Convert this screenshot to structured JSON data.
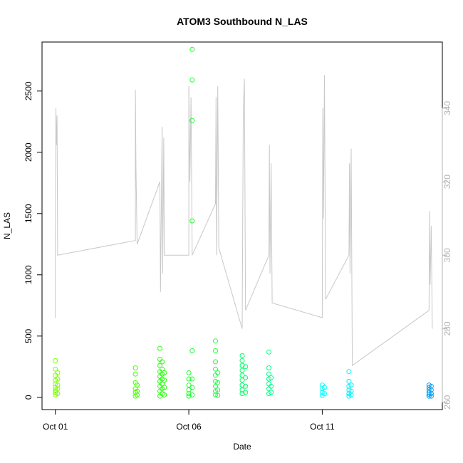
{
  "chart_data": {
    "type": "scatter",
    "title": "ATOM3 Southbound N_LAS",
    "xlabel": "Date",
    "ylabel": "N_LAS",
    "x_axis": {
      "kind": "date",
      "range": [
        "2023-09-30T12:00",
        "2023-10-15T12:00"
      ],
      "ticks": [
        {
          "value": "2023-10-01",
          "label": "Oct 01"
        },
        {
          "value": "2023-10-06",
          "label": "Oct 06"
        },
        {
          "value": "2023-10-11",
          "label": "Oct 11"
        }
      ]
    },
    "y_left": {
      "range": [
        -100,
        2900
      ],
      "ticks": [
        0,
        500,
        1000,
        1500,
        2000,
        2500
      ]
    },
    "y_right": {
      "range": [
        258,
        358
      ],
      "ticks": [
        260,
        280,
        300,
        320,
        340
      ],
      "color": "#b3b3b3"
    },
    "grid": false,
    "legend": "none",
    "point_series": {
      "marker": "open-circle",
      "color_by": "day",
      "points": [
        [
          "2023-10-01T00:00",
          300,
          "#7cff00"
        ],
        [
          "2023-10-01T00:00",
          230,
          "#7cff00"
        ],
        [
          "2023-10-01T00:00",
          180,
          "#7cff00"
        ],
        [
          "2023-10-01T00:00",
          140,
          "#7cff00"
        ],
        [
          "2023-10-01T00:00",
          110,
          "#7cff00"
        ],
        [
          "2023-10-01T00:00",
          80,
          "#7cff00"
        ],
        [
          "2023-10-01T00:00",
          60,
          "#7cff00"
        ],
        [
          "2023-10-01T00:00",
          40,
          "#7cff00"
        ],
        [
          "2023-10-01T00:00",
          20,
          "#7cff00"
        ],
        [
          "2023-10-01T02:00",
          200,
          "#7cff00"
        ],
        [
          "2023-10-01T02:00",
          150,
          "#7cff00"
        ],
        [
          "2023-10-01T02:00",
          100,
          "#7cff00"
        ],
        [
          "2023-10-01T02:00",
          70,
          "#7cff00"
        ],
        [
          "2023-10-01T02:00",
          30,
          "#7cff00"
        ],
        [
          "2023-10-04T00:00",
          240,
          "#47ff00"
        ],
        [
          "2023-10-04T00:00",
          190,
          "#47ff00"
        ],
        [
          "2023-10-04T00:00",
          120,
          "#47ff00"
        ],
        [
          "2023-10-04T00:00",
          70,
          "#47ff00"
        ],
        [
          "2023-10-04T00:00",
          40,
          "#47ff00"
        ],
        [
          "2023-10-04T00:00",
          10,
          "#47ff00"
        ],
        [
          "2023-10-04T01:30",
          100,
          "#47ff00"
        ],
        [
          "2023-10-04T01:30",
          50,
          "#47ff00"
        ],
        [
          "2023-10-04T01:30",
          20,
          "#47ff00"
        ],
        [
          "2023-10-04T22:00",
          400,
          "#2aff10"
        ],
        [
          "2023-10-04T22:00",
          310,
          "#2aff10"
        ],
        [
          "2023-10-04T22:00",
          260,
          "#2aff10"
        ],
        [
          "2023-10-04T22:00",
          210,
          "#2aff10"
        ],
        [
          "2023-10-04T22:00",
          170,
          "#2aff10"
        ],
        [
          "2023-10-04T22:00",
          130,
          "#2aff10"
        ],
        [
          "2023-10-04T22:00",
          90,
          "#2aff10"
        ],
        [
          "2023-10-04T22:00",
          50,
          "#2aff10"
        ],
        [
          "2023-10-04T22:00",
          10,
          "#2aff10"
        ],
        [
          "2023-10-05T00:00",
          290,
          "#2aff10"
        ],
        [
          "2023-10-05T00:00",
          230,
          "#2aff10"
        ],
        [
          "2023-10-05T00:00",
          190,
          "#2aff10"
        ],
        [
          "2023-10-05T00:00",
          150,
          "#2aff10"
        ],
        [
          "2023-10-05T00:00",
          110,
          "#2aff10"
        ],
        [
          "2023-10-05T00:00",
          70,
          "#2aff10"
        ],
        [
          "2023-10-05T00:00",
          30,
          "#2aff10"
        ],
        [
          "2023-10-05T02:00",
          200,
          "#2aff10"
        ],
        [
          "2023-10-05T02:00",
          140,
          "#2aff10"
        ],
        [
          "2023-10-05T02:00",
          80,
          "#2aff10"
        ],
        [
          "2023-10-05T02:00",
          20,
          "#2aff10"
        ],
        [
          "2023-10-06T00:00",
          200,
          "#1aff2e"
        ],
        [
          "2023-10-06T00:00",
          150,
          "#1aff2e"
        ],
        [
          "2023-10-06T00:00",
          100,
          "#1aff2e"
        ],
        [
          "2023-10-06T00:00",
          60,
          "#1aff2e"
        ],
        [
          "2023-10-06T00:00",
          30,
          "#1aff2e"
        ],
        [
          "2023-10-06T00:00",
          10,
          "#1aff2e"
        ],
        [
          "2023-10-06T03:00",
          2840,
          "#1aff2e"
        ],
        [
          "2023-10-06T03:00",
          2590,
          "#1aff2e"
        ],
        [
          "2023-10-06T03:00",
          2260,
          "#1aff2e"
        ],
        [
          "2023-10-06T03:00",
          1440,
          "#1aff2e"
        ],
        [
          "2023-10-06T03:00",
          380,
          "#1aff2e"
        ],
        [
          "2023-10-06T03:00",
          150,
          "#1aff2e"
        ],
        [
          "2023-10-06T03:00",
          80,
          "#1aff2e"
        ],
        [
          "2023-10-06T03:00",
          20,
          "#1aff2e"
        ],
        [
          "2023-10-07T00:00",
          460,
          "#1aff3c"
        ],
        [
          "2023-10-07T00:00",
          380,
          "#1aff3c"
        ],
        [
          "2023-10-07T00:00",
          290,
          "#1aff3c"
        ],
        [
          "2023-10-07T00:00",
          230,
          "#1aff3c"
        ],
        [
          "2023-10-07T00:00",
          180,
          "#1aff3c"
        ],
        [
          "2023-10-07T00:00",
          130,
          "#1aff3c"
        ],
        [
          "2023-10-07T00:00",
          90,
          "#1aff3c"
        ],
        [
          "2023-10-07T00:00",
          50,
          "#1aff3c"
        ],
        [
          "2023-10-07T00:00",
          20,
          "#1aff3c"
        ],
        [
          "2023-10-07T02:00",
          200,
          "#1aff3c"
        ],
        [
          "2023-10-07T02:00",
          120,
          "#1aff3c"
        ],
        [
          "2023-10-07T02:00",
          60,
          "#1aff3c"
        ],
        [
          "2023-10-07T02:00",
          15,
          "#1aff3c"
        ],
        [
          "2023-10-08T00:00",
          340,
          "#00ff66"
        ],
        [
          "2023-10-08T00:00",
          300,
          "#00ff66"
        ],
        [
          "2023-10-08T00:00",
          260,
          "#00ff66"
        ],
        [
          "2023-10-08T00:00",
          220,
          "#00ff66"
        ],
        [
          "2023-10-08T00:00",
          180,
          "#00ff66"
        ],
        [
          "2023-10-08T00:00",
          140,
          "#00ff66"
        ],
        [
          "2023-10-08T00:00",
          100,
          "#00ff66"
        ],
        [
          "2023-10-08T00:00",
          60,
          "#00ff66"
        ],
        [
          "2023-10-08T00:00",
          30,
          "#00ff66"
        ],
        [
          "2023-10-08T03:00",
          250,
          "#00ff66"
        ],
        [
          "2023-10-08T03:00",
          160,
          "#00ff66"
        ],
        [
          "2023-10-08T03:00",
          90,
          "#00ff66"
        ],
        [
          "2023-10-08T03:00",
          40,
          "#00ff66"
        ],
        [
          "2023-10-09T00:00",
          370,
          "#00ff88"
        ],
        [
          "2023-10-09T00:00",
          240,
          "#00ff88"
        ],
        [
          "2023-10-09T00:00",
          190,
          "#00ff88"
        ],
        [
          "2023-10-09T00:00",
          150,
          "#00ff88"
        ],
        [
          "2023-10-09T00:00",
          110,
          "#00ff88"
        ],
        [
          "2023-10-09T00:00",
          70,
          "#00ff88"
        ],
        [
          "2023-10-09T00:00",
          30,
          "#00ff88"
        ],
        [
          "2023-10-09T02:00",
          160,
          "#00ff88"
        ],
        [
          "2023-10-09T02:00",
          90,
          "#00ff88"
        ],
        [
          "2023-10-09T02:00",
          40,
          "#00ff88"
        ],
        [
          "2023-10-11T00:00",
          100,
          "#00ffff"
        ],
        [
          "2023-10-11T00:00",
          70,
          "#00ffff"
        ],
        [
          "2023-10-11T00:00",
          40,
          "#00ffff"
        ],
        [
          "2023-10-11T00:00",
          15,
          "#00ffff"
        ],
        [
          "2023-10-11T02:00",
          80,
          "#00ffff"
        ],
        [
          "2023-10-11T02:00",
          30,
          "#00ffff"
        ],
        [
          "2023-10-12T00:00",
          210,
          "#00f0ff"
        ],
        [
          "2023-10-12T00:00",
          130,
          "#00f0ff"
        ],
        [
          "2023-10-12T00:00",
          90,
          "#00f0ff"
        ],
        [
          "2023-10-12T00:00",
          60,
          "#00f0ff"
        ],
        [
          "2023-10-12T00:00",
          30,
          "#00f0ff"
        ],
        [
          "2023-10-12T00:00",
          10,
          "#00f0ff"
        ],
        [
          "2023-10-12T02:00",
          100,
          "#00f0ff"
        ],
        [
          "2023-10-12T02:00",
          50,
          "#00f0ff"
        ],
        [
          "2023-10-12T02:00",
          20,
          "#00f0ff"
        ],
        [
          "2023-10-15T00:00",
          100,
          "#0a9ef0"
        ],
        [
          "2023-10-15T00:00",
          80,
          "#0a9ef0"
        ],
        [
          "2023-10-15T00:00",
          60,
          "#0a9ef0"
        ],
        [
          "2023-10-15T00:00",
          40,
          "#0a9ef0"
        ],
        [
          "2023-10-15T00:00",
          25,
          "#0a9ef0"
        ],
        [
          "2023-10-15T00:00",
          10,
          "#0a9ef0"
        ],
        [
          "2023-10-15T02:00",
          90,
          "#0a9ef0"
        ],
        [
          "2023-10-15T02:00",
          60,
          "#0a9ef0"
        ],
        [
          "2023-10-15T02:00",
          30,
          "#0a9ef0"
        ],
        [
          "2023-10-15T02:00",
          10,
          "#0a9ef0"
        ]
      ]
    },
    "line_series": {
      "axis": "right",
      "color": "#c8c8c8",
      "points": [
        [
          "2023-10-01T00:00",
          283
        ],
        [
          "2023-10-01T00:00",
          302
        ],
        [
          "2023-10-01T00:30",
          340
        ],
        [
          "2023-10-01T01:00",
          330
        ],
        [
          "2023-10-01T01:30",
          338
        ],
        [
          "2023-10-01T02:00",
          300
        ],
        [
          "2023-10-04T00:00",
          304
        ],
        [
          "2023-10-04T00:00",
          345
        ],
        [
          "2023-10-04T00:30",
          324
        ],
        [
          "2023-10-04T01:30",
          303
        ],
        [
          "2023-10-04T22:00",
          320
        ],
        [
          "2023-10-04T22:30",
          290
        ],
        [
          "2023-10-05T00:00",
          335
        ],
        [
          "2023-10-05T00:30",
          295
        ],
        [
          "2023-10-05T01:30",
          332
        ],
        [
          "2023-10-05T02:00",
          300
        ],
        [
          "2023-10-06T00:00",
          300
        ],
        [
          "2023-10-06T00:00",
          346
        ],
        [
          "2023-10-06T01:00",
          320
        ],
        [
          "2023-10-06T02:00",
          343
        ],
        [
          "2023-10-06T03:00",
          300
        ],
        [
          "2023-10-07T00:00",
          314
        ],
        [
          "2023-10-07T00:30",
          343
        ],
        [
          "2023-10-07T01:00",
          300
        ],
        [
          "2023-10-07T02:00",
          346
        ],
        [
          "2023-10-07T03:00",
          302
        ],
        [
          "2023-10-08T00:00",
          280
        ],
        [
          "2023-10-08T00:30",
          312
        ],
        [
          "2023-10-08T01:00",
          340
        ],
        [
          "2023-10-08T02:00",
          348
        ],
        [
          "2023-10-08T03:00",
          285
        ],
        [
          "2023-10-09T00:00",
          300
        ],
        [
          "2023-10-09T00:30",
          330
        ],
        [
          "2023-10-09T01:00",
          295
        ],
        [
          "2023-10-09T02:00",
          325
        ],
        [
          "2023-10-09T03:00",
          287
        ],
        [
          "2023-10-11T00:00",
          283
        ],
        [
          "2023-10-11T00:30",
          340
        ],
        [
          "2023-10-11T01:00",
          310
        ],
        [
          "2023-10-11T02:00",
          349
        ],
        [
          "2023-10-11T03:00",
          288
        ],
        [
          "2023-10-12T00:00",
          300
        ],
        [
          "2023-10-12T00:30",
          325
        ],
        [
          "2023-10-12T01:00",
          295
        ],
        [
          "2023-10-12T02:00",
          329
        ],
        [
          "2023-10-12T03:00",
          270
        ],
        [
          "2023-10-15T00:00",
          285
        ],
        [
          "2023-10-15T00:30",
          312
        ],
        [
          "2023-10-15T01:00",
          292
        ],
        [
          "2023-10-15T02:00",
          308
        ],
        [
          "2023-10-15T03:00",
          280
        ]
      ]
    }
  }
}
